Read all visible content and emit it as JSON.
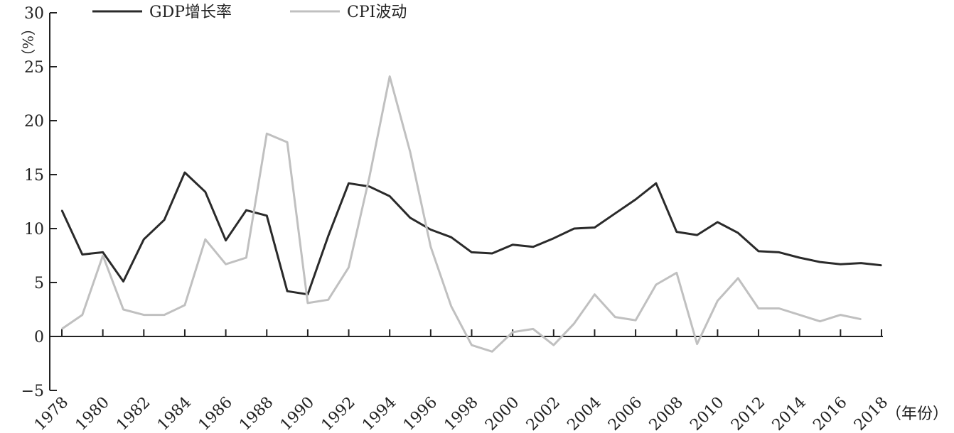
{
  "chart_data": {
    "type": "line",
    "title": "",
    "ylabel": "%",
    "xlabel": "年份",
    "ylim": [
      -5,
      30
    ],
    "yticks": [
      -5,
      0,
      5,
      10,
      15,
      20,
      25,
      30
    ],
    "ytick_labels": [
      "−5",
      "0",
      "5",
      "10",
      "15",
      "20",
      "25",
      "30"
    ],
    "xticks": [
      1978,
      1980,
      1982,
      1984,
      1986,
      1988,
      1990,
      1992,
      1994,
      1996,
      1998,
      2000,
      2002,
      2004,
      2006,
      2008,
      2010,
      2012,
      2014,
      2016,
      2018
    ],
    "xtick_labels": [
      "1978",
      "1980",
      "1982",
      "1984",
      "1986",
      "1988",
      "1990",
      "1992",
      "1994",
      "1996",
      "1998",
      "2000",
      "2002",
      "2004",
      "2006",
      "2008",
      "2010",
      "2012",
      "2014",
      "2016",
      "2018"
    ],
    "legend_position": "top-left",
    "grid": false,
    "series": [
      {
        "name": "GDP增长率",
        "color": "#2a2a2a",
        "x": [
          1978,
          1979,
          1980,
          1981,
          1982,
          1983,
          1984,
          1985,
          1986,
          1987,
          1988,
          1989,
          1990,
          1991,
          1992,
          1993,
          1994,
          1995,
          1996,
          1997,
          1998,
          1999,
          2000,
          2001,
          2002,
          2003,
          2004,
          2005,
          2006,
          2007,
          2008,
          2009,
          2010,
          2011,
          2012,
          2013,
          2014,
          2015,
          2016,
          2017,
          2018
        ],
        "values": [
          11.7,
          7.6,
          7.8,
          5.1,
          9.0,
          10.8,
          15.2,
          13.4,
          8.9,
          11.7,
          11.2,
          4.2,
          3.9,
          9.3,
          14.2,
          13.9,
          13.0,
          11.0,
          9.9,
          9.2,
          7.8,
          7.7,
          8.5,
          8.3,
          9.1,
          10.0,
          10.1,
          11.4,
          12.7,
          14.2,
          9.7,
          9.4,
          10.6,
          9.6,
          7.9,
          7.8,
          7.3,
          6.9,
          6.7,
          6.8,
          6.6
        ]
      },
      {
        "name": "CPI波动",
        "color": "#c0c0c0",
        "x": [
          1978,
          1979,
          1980,
          1981,
          1982,
          1983,
          1984,
          1985,
          1986,
          1987,
          1988,
          1989,
          1990,
          1991,
          1992,
          1993,
          1994,
          1995,
          1996,
          1997,
          1998,
          1999,
          2000,
          2001,
          2002,
          2003,
          2004,
          2005,
          2006,
          2007,
          2008,
          2009,
          2010,
          2011,
          2012,
          2013,
          2014,
          2015,
          2016,
          2017
        ],
        "values": [
          0.7,
          2.0,
          7.5,
          2.5,
          2.0,
          2.0,
          2.9,
          9.0,
          6.7,
          7.3,
          18.8,
          18.0,
          3.1,
          3.4,
          6.4,
          14.7,
          24.1,
          17.1,
          8.3,
          2.8,
          -0.8,
          -1.4,
          0.4,
          0.7,
          -0.8,
          1.2,
          3.9,
          1.8,
          1.5,
          4.8,
          5.9,
          -0.7,
          3.3,
          5.4,
          2.6,
          2.6,
          2.0,
          1.4,
          2.0,
          1.6
        ]
      }
    ]
  }
}
